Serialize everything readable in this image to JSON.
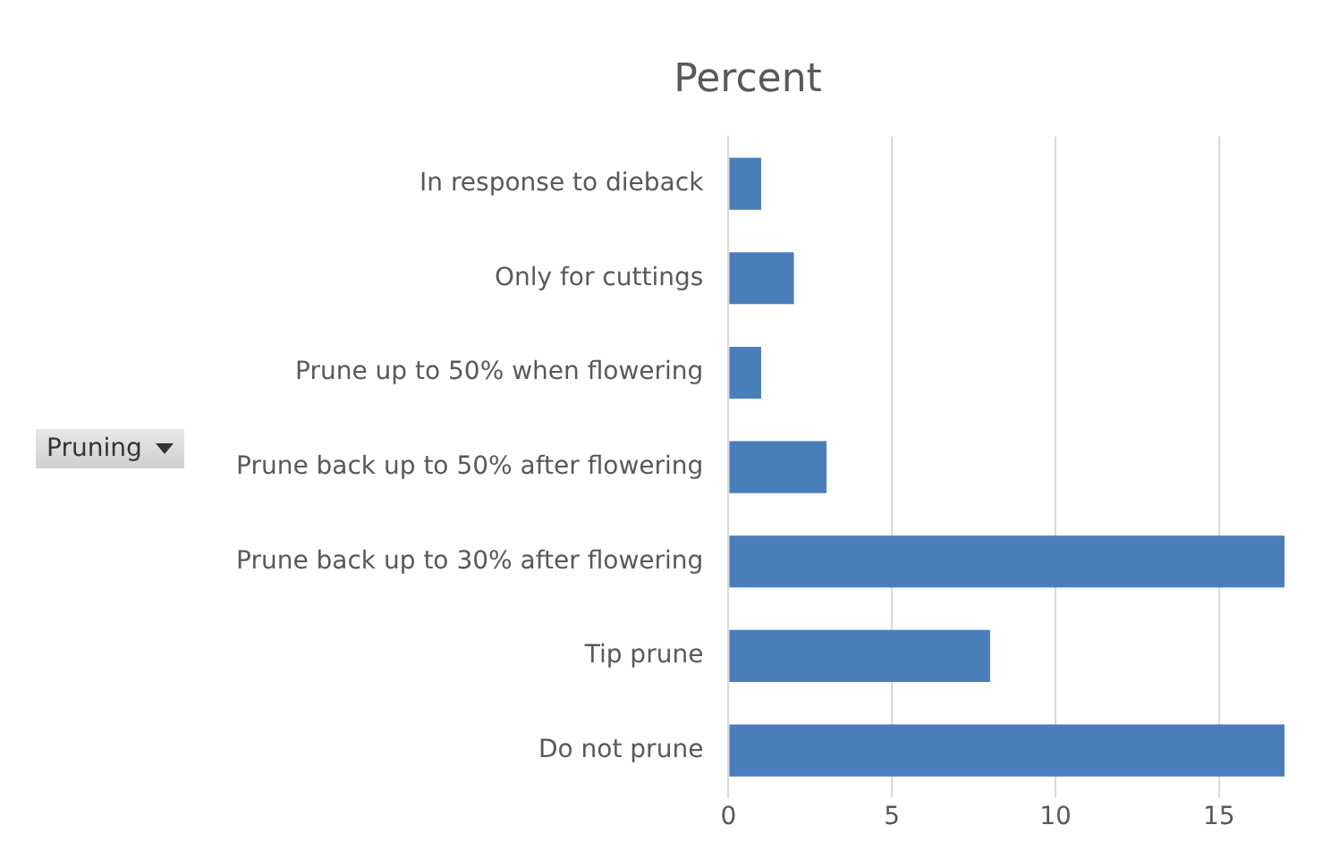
{
  "chart_data": {
    "type": "bar",
    "orientation": "horizontal",
    "title": "Percent",
    "ylabel": "Pruning",
    "categories": [
      "In response to dieback",
      "Only for cuttings",
      "Prune up to 50% when flowering",
      "Prune back up to 50% after flowering",
      "Prune back up to 30% after flowering",
      "Tip prune",
      "Do not prune"
    ],
    "values": [
      1,
      2,
      1,
      3,
      17,
      8,
      17
    ],
    "color": "#4a7ebb",
    "xlim": [
      0,
      17
    ],
    "xticks": [
      0,
      5,
      10,
      15
    ],
    "grid": "x",
    "legend": false
  }
}
